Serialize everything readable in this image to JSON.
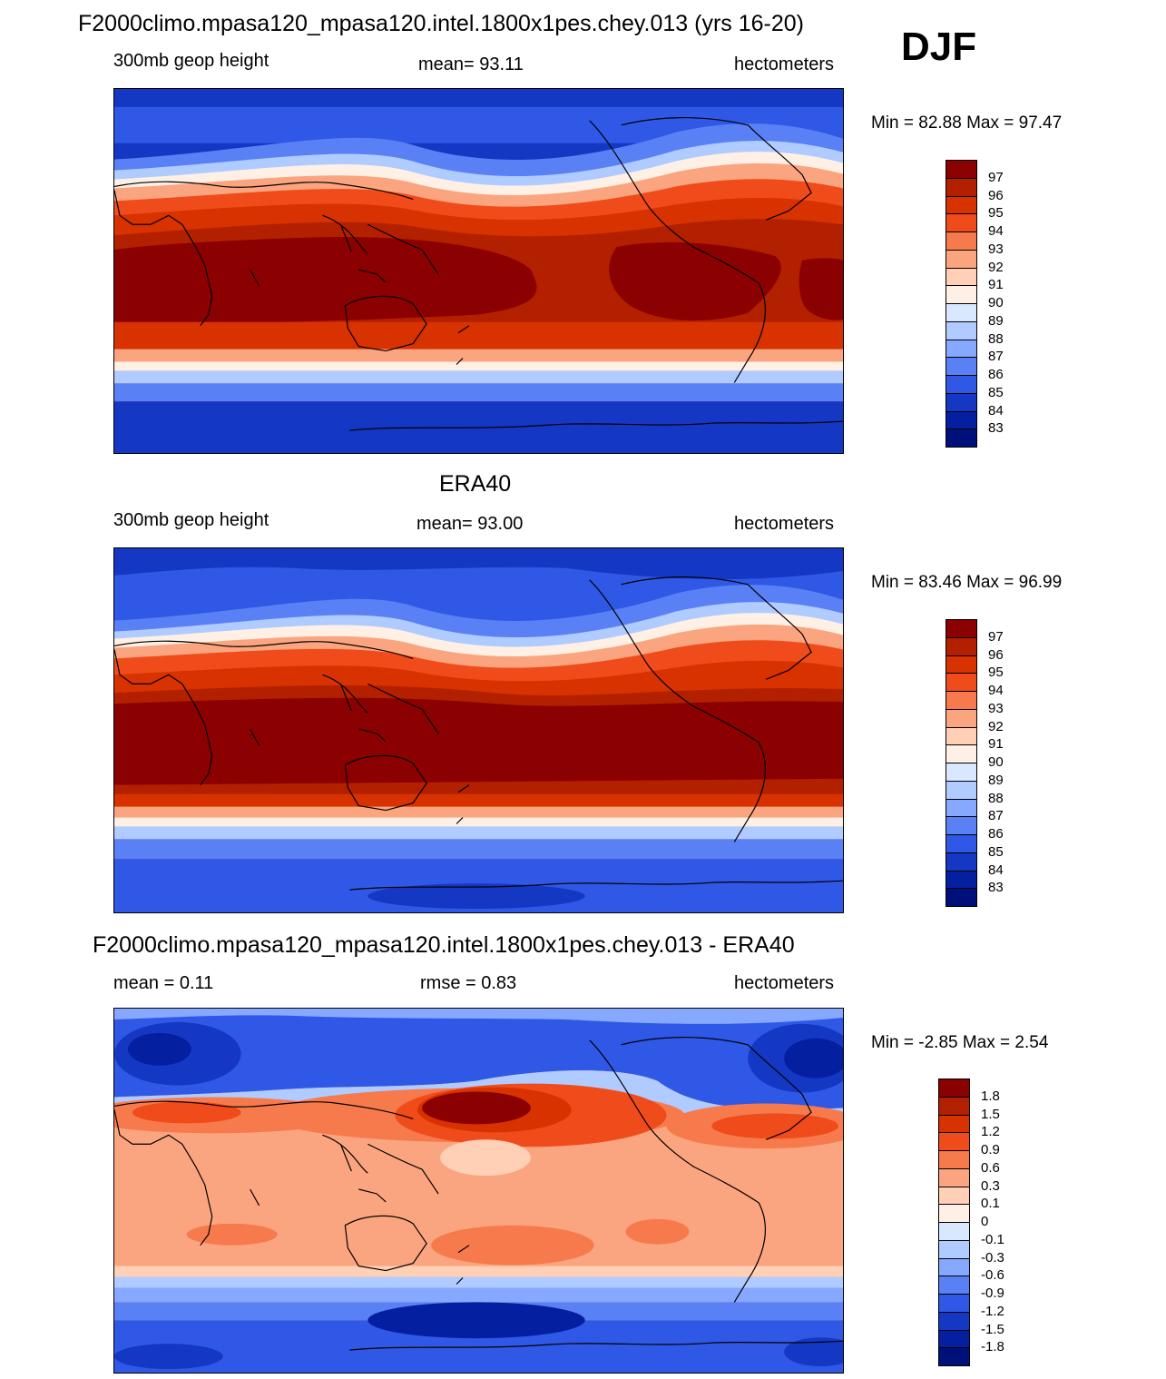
{
  "season": "DJF",
  "panels": [
    {
      "id": "model",
      "title": "F2000climo.mpasa120_mpasa120.intel.1800x1pes.chey.013 (yrs 16-20)",
      "left": "300mb geop height",
      "center": "mean=  93.11",
      "right": "hectometers",
      "minmax": "Min =  82.88 Max =  97.47",
      "colorbar_labels": [
        "97",
        "96",
        "95",
        "94",
        "93",
        "92",
        "91",
        "90",
        "89",
        "88",
        "87",
        "86",
        "85",
        "84",
        "83"
      ],
      "colorbar_colors": [
        "#8b0000",
        "#b22000",
        "#d73200",
        "#f04b1a",
        "#f77a4d",
        "#fba580",
        "#ffd0b5",
        "#fff0e6",
        "#d9e8ff",
        "#b0cbff",
        "#86a8ff",
        "#5a80f5",
        "#3058e6",
        "#1438c4",
        "#0420a0",
        "#00107a"
      ]
    },
    {
      "id": "obs",
      "title": "ERA40",
      "left": "300mb geop height",
      "center": "mean=  93.00",
      "right": "hectometers",
      "minmax": "Min =  83.46 Max =  96.99",
      "colorbar_labels": [
        "97",
        "96",
        "95",
        "94",
        "93",
        "92",
        "91",
        "90",
        "89",
        "88",
        "87",
        "86",
        "85",
        "84",
        "83"
      ],
      "colorbar_colors": [
        "#8b0000",
        "#b22000",
        "#d73200",
        "#f04b1a",
        "#f77a4d",
        "#fba580",
        "#ffd0b5",
        "#fff0e6",
        "#d9e8ff",
        "#b0cbff",
        "#86a8ff",
        "#5a80f5",
        "#3058e6",
        "#1438c4",
        "#0420a0",
        "#00107a"
      ]
    },
    {
      "id": "diff",
      "title": "F2000climo.mpasa120_mpasa120.intel.1800x1pes.chey.013 - ERA40",
      "left": "mean =   0.11",
      "center": "rmse =   0.83",
      "right": "hectometers",
      "minmax": "Min =  -2.85 Max =   2.54",
      "colorbar_labels": [
        "1.8",
        "1.5",
        "1.2",
        "0.9",
        "0.6",
        "0.3",
        "0.1",
        "0",
        "-0.1",
        "-0.3",
        "-0.6",
        "-0.9",
        "-1.2",
        "-1.5",
        "-1.8"
      ],
      "colorbar_colors": [
        "#8b0000",
        "#b22000",
        "#d73200",
        "#f04b1a",
        "#f77a4d",
        "#fba580",
        "#ffd0b5",
        "#fff0e6",
        "#d9e8ff",
        "#b0cbff",
        "#86a8ff",
        "#5a80f5",
        "#3058e6",
        "#1438c4",
        "#0420a0",
        "#00107a"
      ]
    }
  ]
}
